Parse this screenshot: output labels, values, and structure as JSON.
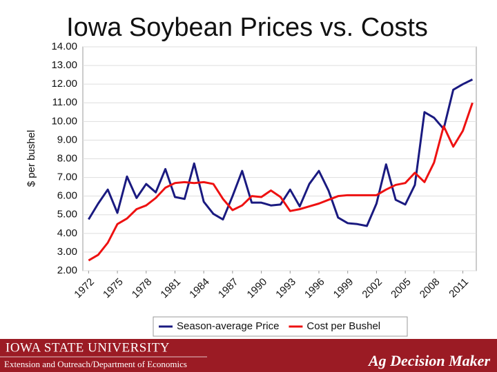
{
  "chart_data": {
    "type": "line",
    "title": "Iowa Soybean Prices vs. Costs",
    "y_label": "$ per bushel",
    "x": [
      1972,
      1973,
      1974,
      1975,
      1976,
      1977,
      1978,
      1979,
      1980,
      1981,
      1982,
      1983,
      1984,
      1985,
      1986,
      1987,
      1988,
      1989,
      1990,
      1991,
      1992,
      1993,
      1994,
      1995,
      1996,
      1997,
      1998,
      1999,
      2000,
      2001,
      2002,
      2003,
      2004,
      2005,
      2006,
      2007,
      2008,
      2009,
      2010,
      2011,
      2012
    ],
    "xlim": [
      1971.4,
      2012.4
    ],
    "xticks": [
      1972,
      1975,
      1978,
      1981,
      1984,
      1987,
      1990,
      1993,
      1996,
      1999,
      2002,
      2005,
      2008,
      2011
    ],
    "ylim": [
      2,
      14
    ],
    "yticks": [
      {
        "value": 2,
        "label": "2.00"
      },
      {
        "value": 3,
        "label": "3.00"
      },
      {
        "value": 4,
        "label": "4.00"
      },
      {
        "value": 5,
        "label": "5.00"
      },
      {
        "value": 6,
        "label": "6.00"
      },
      {
        "value": 7,
        "label": "7.00"
      },
      {
        "value": 8,
        "label": "8.00"
      },
      {
        "value": 9,
        "label": "9.00"
      },
      {
        "value": 10,
        "label": "10.00"
      },
      {
        "value": 11,
        "label": "11.00"
      },
      {
        "value": 12,
        "label": "12.00"
      },
      {
        "value": 13,
        "label": "13.00"
      },
      {
        "value": 14,
        "label": "14.00"
      }
    ],
    "grid": true,
    "legend": "bottom",
    "series": [
      {
        "name": "Season-average Price",
        "color": "#1a1a80",
        "values": [
          4.75,
          5.6,
          6.35,
          5.1,
          7.05,
          5.9,
          6.65,
          6.2,
          7.45,
          5.95,
          5.85,
          7.75,
          5.7,
          5.05,
          4.75,
          6.0,
          7.35,
          5.65,
          5.65,
          5.5,
          5.55,
          6.35,
          5.45,
          6.65,
          7.35,
          6.3,
          4.85,
          4.55,
          4.5,
          4.4,
          5.6,
          7.7,
          5.8,
          5.55,
          6.6,
          10.5,
          10.2,
          9.6,
          11.7,
          12.0,
          12.25
        ]
      },
      {
        "name": "Cost per Bushel",
        "color": "#ee1111",
        "values": [
          2.55,
          2.85,
          3.5,
          4.5,
          4.8,
          5.3,
          5.5,
          5.9,
          6.45,
          6.7,
          6.75,
          6.7,
          6.75,
          6.65,
          5.85,
          5.25,
          5.5,
          6.0,
          5.95,
          6.3,
          5.95,
          5.2,
          5.3,
          5.45,
          5.6,
          5.8,
          6.0,
          6.05,
          6.05,
          6.05,
          6.05,
          6.35,
          6.6,
          6.7,
          7.25,
          6.75,
          7.8,
          9.75,
          8.65,
          9.5,
          11.0
        ]
      }
    ]
  },
  "footer": {
    "university": "Iowa State University",
    "department": "Extension and Outreach/Department of Economics",
    "brand": "Ag Decision Maker"
  }
}
